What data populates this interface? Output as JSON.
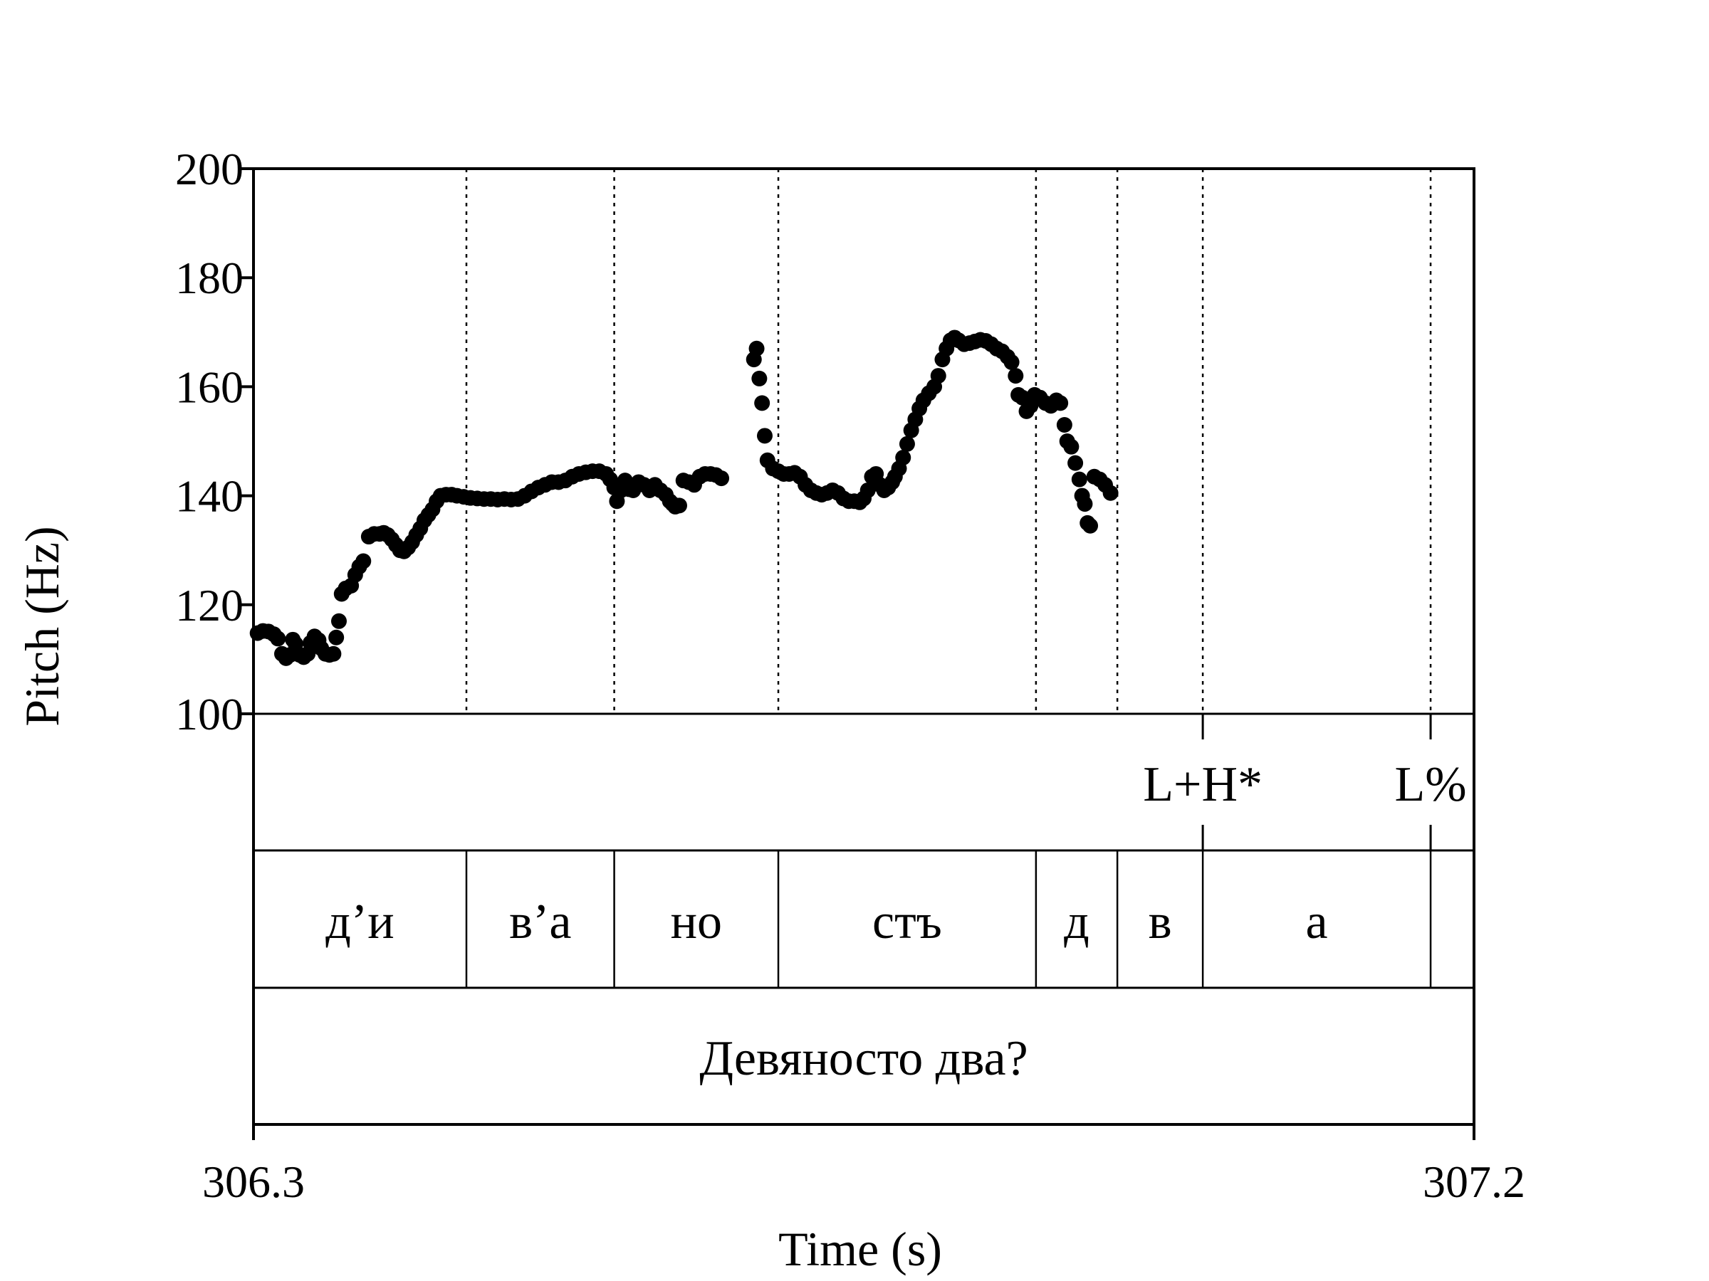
{
  "chart_data": {
    "type": "scatter",
    "xlabel": "Time (s)",
    "ylabel": "Pitch (Hz)",
    "xlim": [
      306.3,
      307.2
    ],
    "ylim": [
      100,
      200
    ],
    "x_tick_labels": [
      "306.3",
      "307.2"
    ],
    "y_tick_labels": [
      "100",
      "120",
      "140",
      "160",
      "180",
      "200"
    ],
    "y_ticks": [
      100,
      120,
      140,
      160,
      180,
      200
    ],
    "boundaries": [
      306.457,
      306.566,
      306.687,
      306.877,
      306.937,
      307.0,
      307.168
    ],
    "tones": [
      {
        "time": 307.0,
        "label": "L+H*"
      },
      {
        "time": 307.168,
        "label": "L%"
      }
    ],
    "syllables": [
      {
        "start": 306.3,
        "end": 306.457,
        "label": "д’и"
      },
      {
        "start": 306.457,
        "end": 306.566,
        "label": "в’а"
      },
      {
        "start": 306.566,
        "end": 306.687,
        "label": "но"
      },
      {
        "start": 306.687,
        "end": 306.877,
        "label": "стъ"
      },
      {
        "start": 306.877,
        "end": 306.937,
        "label": "д"
      },
      {
        "start": 306.937,
        "end": 307.0,
        "label": "в"
      },
      {
        "start": 307.0,
        "end": 307.168,
        "label": "а"
      },
      {
        "start": 307.168,
        "end": 307.2,
        "label": ""
      }
    ],
    "sentence": "Девяносто два?",
    "series": [
      {
        "points": [
          [
            306.303,
            114.8
          ],
          [
            306.307,
            115.2
          ],
          [
            306.311,
            115.1
          ],
          [
            306.315,
            114.6
          ],
          [
            306.318,
            113.8
          ],
          [
            306.321,
            111.0
          ],
          [
            306.324,
            110.2
          ],
          [
            306.327,
            110.8
          ],
          [
            306.329,
            113.6
          ],
          [
            306.331,
            112.8
          ],
          [
            306.334,
            110.8
          ],
          [
            306.337,
            110.4
          ],
          [
            306.34,
            111.0
          ],
          [
            306.342,
            113.0
          ],
          [
            306.345,
            114.2
          ],
          [
            306.348,
            113.5
          ],
          [
            306.35,
            112.0
          ],
          [
            306.353,
            111.0
          ],
          [
            306.356,
            110.8
          ],
          [
            306.359,
            111.0
          ],
          [
            306.361,
            114.0
          ],
          [
            306.363,
            117.0
          ],
          [
            306.365,
            122.0
          ],
          [
            306.368,
            123.0
          ],
          [
            306.372,
            123.5
          ],
          [
            306.375,
            125.5
          ],
          [
            306.378,
            127.0
          ],
          [
            306.381,
            128.0
          ],
          [
            306.385,
            132.5
          ],
          [
            306.389,
            133.0
          ],
          [
            306.393,
            133.0
          ],
          [
            306.396,
            133.2
          ],
          [
            306.399,
            132.8
          ],
          [
            306.402,
            132.0
          ],
          [
            306.405,
            131.0
          ],
          [
            306.408,
            130.0
          ],
          [
            306.411,
            129.8
          ],
          [
            306.414,
            130.5
          ],
          [
            306.417,
            131.5
          ],
          [
            306.42,
            132.8
          ],
          [
            306.423,
            134.0
          ],
          [
            306.426,
            135.5
          ],
          [
            306.429,
            136.5
          ],
          [
            306.432,
            137.5
          ],
          [
            306.435,
            139.0
          ],
          [
            306.438,
            140.0
          ],
          [
            306.442,
            140.2
          ],
          [
            306.446,
            140.2
          ],
          [
            306.45,
            140.0
          ],
          [
            306.455,
            139.8
          ],
          [
            306.46,
            139.6
          ],
          [
            306.465,
            139.5
          ],
          [
            306.47,
            139.4
          ],
          [
            306.475,
            139.4
          ],
          [
            306.48,
            139.3
          ],
          [
            306.485,
            139.4
          ],
          [
            306.49,
            139.3
          ],
          [
            306.495,
            139.4
          ],
          [
            306.5,
            140.0
          ],
          [
            306.505,
            140.8
          ],
          [
            306.51,
            141.5
          ],
          [
            306.515,
            142.0
          ],
          [
            306.52,
            142.5
          ],
          [
            306.525,
            142.5
          ],
          [
            306.53,
            142.8
          ],
          [
            306.535,
            143.5
          ],
          [
            306.54,
            144.0
          ],
          [
            306.545,
            144.3
          ],
          [
            306.55,
            144.5
          ],
          [
            306.555,
            144.5
          ],
          [
            306.56,
            144.0
          ],
          [
            306.563,
            143.0
          ],
          [
            306.566,
            141.5
          ],
          [
            306.568,
            139.0
          ],
          [
            306.571,
            141.0
          ],
          [
            306.574,
            142.8
          ],
          [
            306.577,
            141.2
          ],
          [
            306.58,
            141.0
          ],
          [
            306.584,
            142.5
          ],
          [
            306.588,
            142.0
          ],
          [
            306.592,
            141.0
          ],
          [
            306.596,
            142.0
          ],
          [
            306.6,
            141.0
          ],
          [
            306.604,
            140.2
          ],
          [
            306.607,
            139.0
          ],
          [
            306.609,
            138.5
          ],
          [
            306.611,
            138.0
          ],
          [
            306.614,
            138.2
          ],
          [
            306.617,
            142.8
          ],
          [
            306.621,
            142.5
          ],
          [
            306.625,
            142.0
          ],
          [
            306.629,
            143.5
          ],
          [
            306.633,
            144.0
          ],
          [
            306.637,
            144.0
          ],
          [
            306.641,
            143.8
          ],
          [
            306.645,
            143.2
          ],
          [
            306.669,
            165.0
          ],
          [
            306.671,
            167.0
          ],
          [
            306.673,
            161.5
          ],
          [
            306.675,
            157.0
          ],
          [
            306.677,
            151.0
          ],
          [
            306.679,
            146.5
          ],
          [
            306.683,
            145.0
          ],
          [
            306.687,
            144.5
          ],
          [
            306.691,
            144.0
          ],
          [
            306.695,
            144.0
          ],
          [
            306.699,
            144.2
          ],
          [
            306.703,
            143.5
          ],
          [
            306.707,
            142.0
          ],
          [
            306.711,
            141.0
          ],
          [
            306.715,
            140.5
          ],
          [
            306.719,
            140.2
          ],
          [
            306.723,
            140.5
          ],
          [
            306.727,
            141.0
          ],
          [
            306.731,
            140.5
          ],
          [
            306.735,
            139.5
          ],
          [
            306.739,
            139.0
          ],
          [
            306.743,
            139.0
          ],
          [
            306.747,
            138.8
          ],
          [
            306.75,
            139.5
          ],
          [
            306.753,
            141.0
          ],
          [
            306.756,
            143.5
          ],
          [
            306.759,
            144.0
          ],
          [
            306.762,
            142.0
          ],
          [
            306.765,
            141.0
          ],
          [
            306.768,
            141.5
          ],
          [
            306.771,
            142.5
          ],
          [
            306.773,
            143.5
          ],
          [
            306.776,
            145.0
          ],
          [
            306.779,
            147.0
          ],
          [
            306.782,
            149.5
          ],
          [
            306.785,
            152.0
          ],
          [
            306.788,
            154.0
          ],
          [
            306.791,
            156.0
          ],
          [
            306.794,
            157.5
          ],
          [
            306.798,
            158.8
          ],
          [
            306.802,
            160.0
          ],
          [
            306.805,
            162.0
          ],
          [
            306.808,
            165.0
          ],
          [
            306.811,
            167.0
          ],
          [
            306.814,
            168.5
          ],
          [
            306.817,
            169.0
          ],
          [
            306.82,
            168.5
          ],
          [
            306.824,
            167.8
          ],
          [
            306.828,
            168.0
          ],
          [
            306.832,
            168.3
          ],
          [
            306.836,
            168.6
          ],
          [
            306.84,
            168.4
          ],
          [
            306.844,
            167.8
          ],
          [
            306.848,
            167.0
          ],
          [
            306.852,
            166.5
          ],
          [
            306.856,
            165.5
          ],
          [
            306.859,
            164.5
          ],
          [
            306.862,
            162.0
          ],
          [
            306.864,
            158.5
          ],
          [
            306.867,
            158.0
          ],
          [
            306.87,
            155.5
          ],
          [
            306.873,
            156.5
          ],
          [
            306.876,
            158.5
          ],
          [
            306.88,
            158.0
          ],
          [
            306.884,
            157.0
          ],
          [
            306.888,
            156.5
          ],
          [
            306.892,
            157.5
          ],
          [
            306.895,
            157.0
          ],
          [
            306.898,
            153.0
          ],
          [
            306.9,
            150.0
          ],
          [
            306.903,
            149.0
          ],
          [
            306.906,
            146.0
          ],
          [
            306.909,
            143.0
          ],
          [
            306.911,
            140.0
          ],
          [
            306.913,
            138.5
          ],
          [
            306.915,
            135.0
          ],
          [
            306.917,
            134.5
          ],
          [
            306.92,
            143.5
          ],
          [
            306.924,
            143.0
          ],
          [
            306.928,
            142.0
          ],
          [
            306.932,
            140.5
          ]
        ]
      }
    ]
  }
}
